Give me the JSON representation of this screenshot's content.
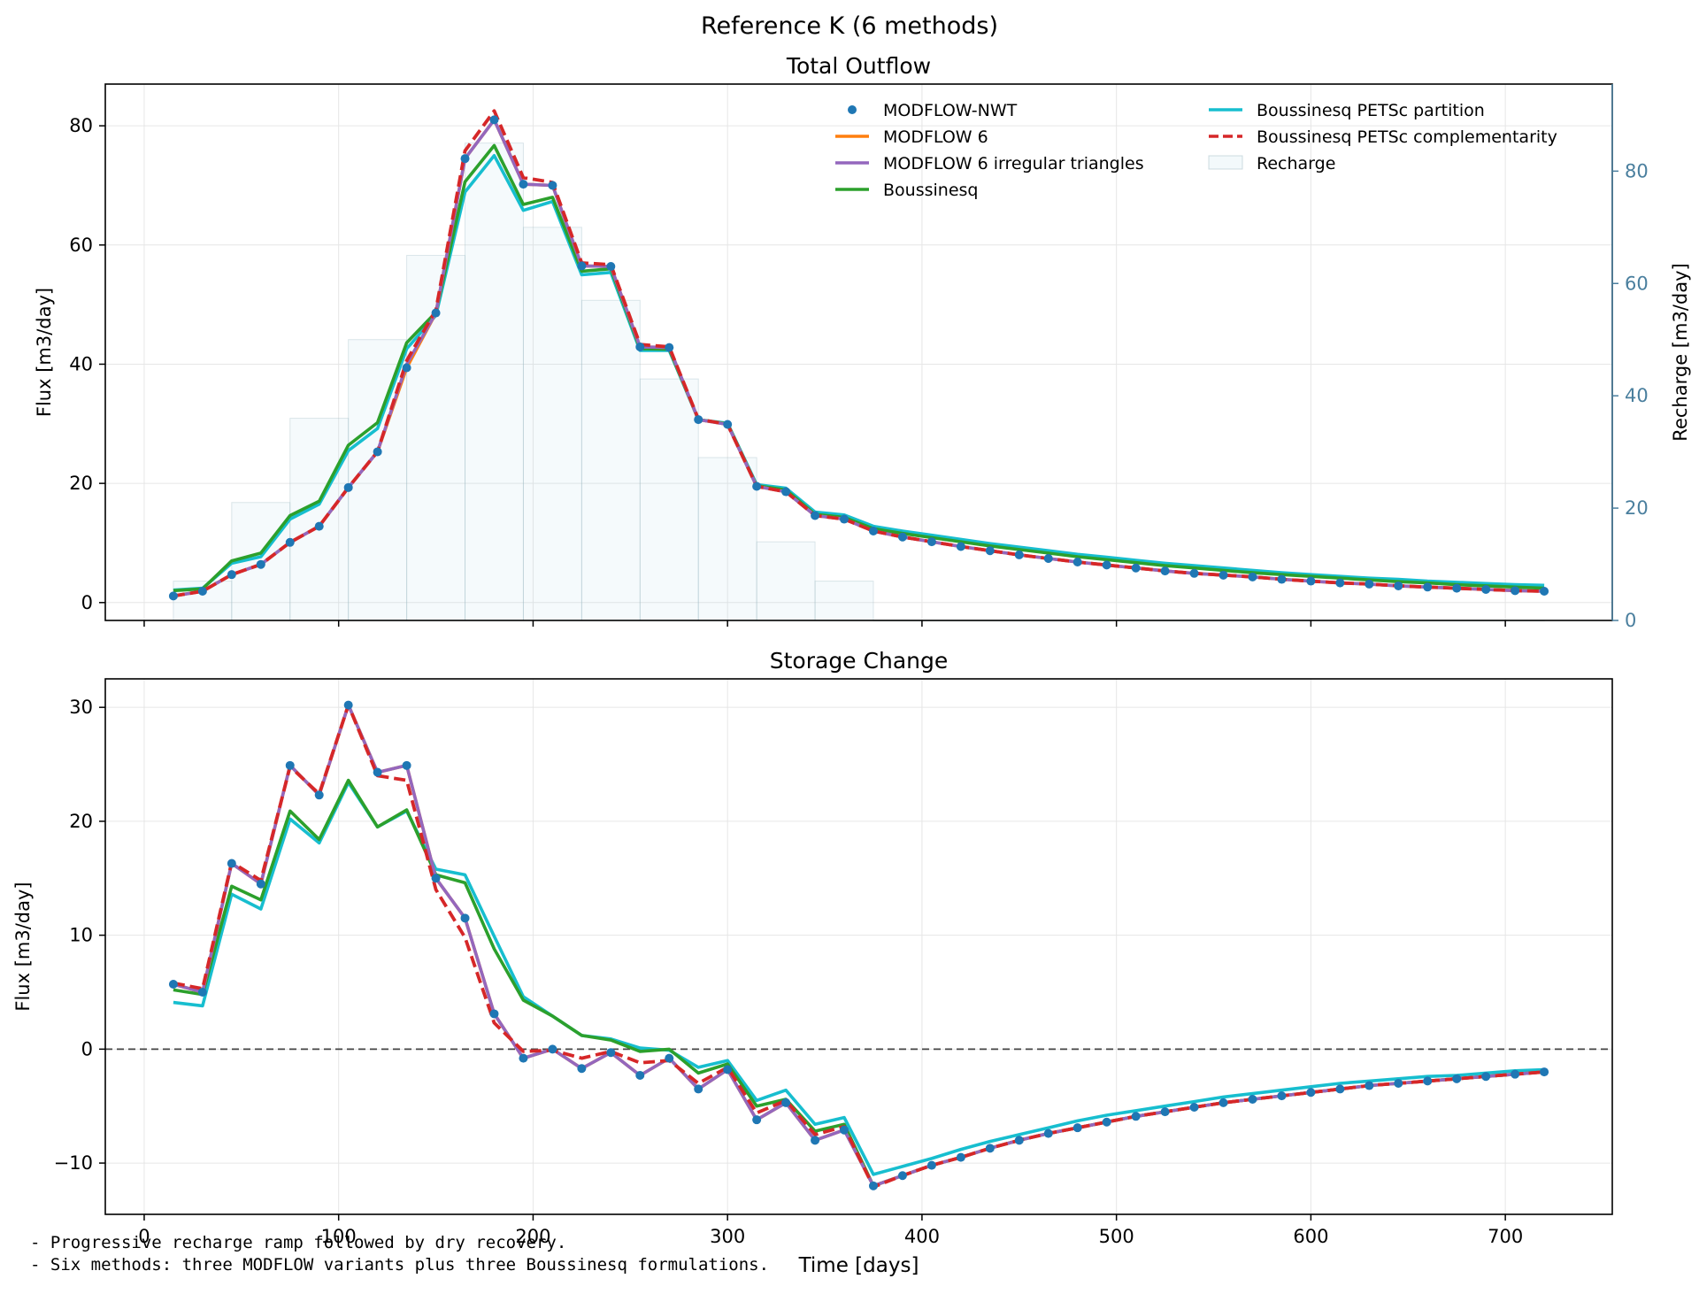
{
  "figure_title": "Reference K (6 methods)",
  "notes": [
    "- Progressive recharge ramp followed by dry recovery.",
    "- Six methods: three MODFLOW variants plus three Boussinesq formulations."
  ],
  "colors": {
    "MODFLOW-NWT": "#1f77b4",
    "MODFLOW 6": "#ff7f0e",
    "MODFLOW 6 irregular triangles": "#9467bd",
    "Boussinesq": "#2ca02c",
    "Boussinesq PETSc partition": "#17becf",
    "Boussinesq PETSc complementarity": "#d62728",
    "Recharge": "#4a7f9e"
  },
  "chart_data": [
    {
      "type": "line",
      "title": "Total Outflow",
      "xlabel": "",
      "ylabel": "Flux [m3/day]",
      "y2label": "Recharge [m3/day]",
      "xlim": [
        -20,
        755
      ],
      "ylim": [
        -3,
        87
      ],
      "y2lim": [
        0,
        95.5
      ],
      "xticks": [
        0,
        100,
        200,
        300,
        400,
        500,
        600,
        700
      ],
      "yticks": [
        0,
        20,
        40,
        60,
        80
      ],
      "y2ticks": [
        0,
        20,
        40,
        60,
        80
      ],
      "grid": true,
      "legend": "top-right",
      "legend_entries": [
        "MODFLOW-NWT",
        "MODFLOW 6",
        "MODFLOW 6 irregular triangles",
        "Boussinesq",
        "Boussinesq PETSc partition",
        "Boussinesq PETSc complementarity",
        "Recharge"
      ],
      "x": [
        15,
        30,
        45,
        60,
        75,
        90,
        105,
        120,
        135,
        150,
        165,
        180,
        195,
        210,
        225,
        240,
        255,
        270,
        285,
        300,
        315,
        330,
        345,
        360,
        375,
        390,
        405,
        420,
        435,
        450,
        465,
        480,
        495,
        510,
        525,
        540,
        555,
        570,
        585,
        600,
        615,
        630,
        645,
        660,
        675,
        690,
        705,
        720
      ],
      "series": [
        {
          "name": "MODFLOW-NWT",
          "style": "markers",
          "values": [
            1.1,
            1.9,
            4.7,
            6.4,
            10.1,
            12.8,
            19.3,
            25.3,
            39.4,
            48.6,
            74.5,
            81.0,
            70.2,
            70.0,
            56.5,
            56.4,
            42.9,
            42.8,
            30.7,
            29.9,
            19.5,
            18.6,
            14.6,
            14.0,
            12.0,
            11.0,
            10.2,
            9.4,
            8.7,
            8.0,
            7.4,
            6.8,
            6.3,
            5.8,
            5.3,
            4.9,
            4.6,
            4.3,
            3.9,
            3.6,
            3.3,
            3.1,
            2.8,
            2.6,
            2.4,
            2.2,
            2.0,
            1.9
          ]
        },
        {
          "name": "MODFLOW 6",
          "style": "solid",
          "values": [
            1.1,
            1.9,
            4.7,
            6.4,
            10.1,
            12.8,
            19.3,
            25.3,
            39.4,
            48.6,
            74.5,
            81.0,
            70.2,
            70.0,
            56.5,
            56.4,
            42.9,
            42.8,
            30.7,
            29.9,
            19.5,
            18.6,
            14.6,
            14.0,
            12.0,
            11.0,
            10.2,
            9.4,
            8.7,
            8.0,
            7.4,
            6.8,
            6.3,
            5.8,
            5.3,
            4.9,
            4.6,
            4.3,
            3.9,
            3.6,
            3.3,
            3.1,
            2.8,
            2.6,
            2.4,
            2.2,
            2.0,
            1.9
          ]
        },
        {
          "name": "MODFLOW 6 irregular triangles",
          "style": "solid",
          "values": [
            1.1,
            1.9,
            4.7,
            6.4,
            10.1,
            12.8,
            19.3,
            25.3,
            40.0,
            48.6,
            74.5,
            81.0,
            70.2,
            70.0,
            56.5,
            56.4,
            42.9,
            42.8,
            30.7,
            29.9,
            19.5,
            18.6,
            14.6,
            14.0,
            12.0,
            11.0,
            10.2,
            9.4,
            8.7,
            8.0,
            7.4,
            6.8,
            6.3,
            5.8,
            5.3,
            4.9,
            4.6,
            4.3,
            3.9,
            3.6,
            3.3,
            3.1,
            2.8,
            2.6,
            2.4,
            2.2,
            2.0,
            1.9
          ]
        },
        {
          "name": "Boussinesq",
          "style": "solid",
          "values": [
            2.0,
            2.3,
            7.0,
            8.3,
            14.6,
            17.0,
            26.4,
            30.2,
            43.6,
            48.7,
            70.6,
            76.7,
            66.8,
            68.0,
            55.6,
            56.0,
            42.6,
            42.5,
            30.7,
            30.0,
            19.6,
            18.9,
            14.8,
            14.3,
            12.4,
            11.6,
            10.9,
            10.2,
            9.5,
            8.9,
            8.3,
            7.7,
            7.2,
            6.7,
            6.2,
            5.8,
            5.4,
            5.0,
            4.7,
            4.4,
            4.1,
            3.8,
            3.5,
            3.3,
            3.0,
            2.8,
            2.6,
            2.4
          ]
        },
        {
          "name": "Boussinesq PETSc partition",
          "style": "solid",
          "values": [
            2.1,
            2.4,
            6.6,
            7.7,
            14.0,
            16.5,
            25.5,
            29.2,
            42.6,
            48.2,
            68.9,
            75.0,
            65.8,
            67.3,
            55.0,
            55.4,
            42.3,
            42.3,
            30.7,
            30.1,
            19.8,
            19.2,
            15.2,
            14.7,
            12.8,
            12.0,
            11.3,
            10.6,
            9.9,
            9.3,
            8.7,
            8.1,
            7.6,
            7.1,
            6.6,
            6.2,
            5.8,
            5.4,
            5.0,
            4.7,
            4.4,
            4.1,
            3.9,
            3.6,
            3.4,
            3.2,
            3.0,
            2.9
          ]
        },
        {
          "name": "Boussinesq PETSc complementarity",
          "style": "dashed",
          "values": [
            1.1,
            1.9,
            4.7,
            6.4,
            10.1,
            12.8,
            19.3,
            25.3,
            40.6,
            49.1,
            75.8,
            82.5,
            71.3,
            70.5,
            57.0,
            56.7,
            43.3,
            42.9,
            30.8,
            29.9,
            19.5,
            18.6,
            14.6,
            14.0,
            12.0,
            11.0,
            10.2,
            9.4,
            8.7,
            8.0,
            7.4,
            6.8,
            6.3,
            5.8,
            5.3,
            4.9,
            4.6,
            4.3,
            3.9,
            3.6,
            3.3,
            3.1,
            2.8,
            2.6,
            2.4,
            2.2,
            2.0,
            1.9
          ]
        }
      ],
      "recharge_bars": {
        "name": "Recharge",
        "axis": "y2",
        "x_start": [
          15,
          45,
          75,
          105,
          135,
          165,
          195,
          225,
          255,
          285,
          315,
          345,
          375
        ],
        "x_end": [
          45,
          75,
          105,
          135,
          165,
          195,
          225,
          255,
          285,
          315,
          345,
          375,
          720
        ],
        "values": [
          7.0,
          21.0,
          36.0,
          50.0,
          65.0,
          85.0,
          70.0,
          57.0,
          43.0,
          29.0,
          14.0,
          7.0,
          0.0
        ]
      }
    },
    {
      "type": "line",
      "title": "Storage Change",
      "xlabel": "Time [days]",
      "ylabel": "Flux [m3/day]",
      "xlim": [
        -20,
        755
      ],
      "ylim": [
        -14.5,
        32.5
      ],
      "xticks": [
        0,
        100,
        200,
        300,
        400,
        500,
        600,
        700
      ],
      "yticks": [
        -10,
        0,
        10,
        20,
        30
      ],
      "reference_line": 0,
      "grid": true,
      "x": [
        15,
        30,
        45,
        60,
        75,
        90,
        105,
        120,
        135,
        150,
        165,
        180,
        195,
        210,
        225,
        240,
        255,
        270,
        285,
        300,
        315,
        330,
        345,
        360,
        375,
        390,
        405,
        420,
        435,
        450,
        465,
        480,
        495,
        510,
        525,
        540,
        555,
        570,
        585,
        600,
        615,
        630,
        645,
        660,
        675,
        690,
        705,
        720
      ],
      "series": [
        {
          "name": "MODFLOW-NWT",
          "style": "markers",
          "values": [
            5.7,
            5.0,
            16.3,
            14.5,
            24.9,
            22.3,
            30.2,
            24.3,
            24.9,
            15.0,
            11.5,
            3.1,
            -0.8,
            0.0,
            -1.7,
            -0.3,
            -2.3,
            -0.8,
            -3.5,
            -1.8,
            -6.2,
            -4.7,
            -8.0,
            -7.1,
            -12.0,
            -11.1,
            -10.2,
            -9.5,
            -8.7,
            -8.0,
            -7.4,
            -6.9,
            -6.4,
            -5.9,
            -5.5,
            -5.1,
            -4.7,
            -4.4,
            -4.1,
            -3.8,
            -3.5,
            -3.2,
            -3.0,
            -2.8,
            -2.6,
            -2.4,
            -2.2,
            -2.0
          ]
        },
        {
          "name": "MODFLOW 6",
          "style": "solid",
          "values": [
            5.7,
            5.0,
            16.3,
            14.5,
            24.9,
            22.3,
            30.2,
            24.3,
            24.9,
            15.0,
            11.5,
            3.1,
            -0.8,
            0.0,
            -1.7,
            -0.3,
            -2.3,
            -0.8,
            -3.5,
            -1.8,
            -6.2,
            -4.7,
            -8.0,
            -7.1,
            -12.0,
            -11.1,
            -10.2,
            -9.5,
            -8.7,
            -8.0,
            -7.4,
            -6.9,
            -6.4,
            -5.9,
            -5.5,
            -5.1,
            -4.7,
            -4.4,
            -4.1,
            -3.8,
            -3.5,
            -3.2,
            -3.0,
            -2.8,
            -2.6,
            -2.4,
            -2.2,
            -2.0
          ]
        },
        {
          "name": "MODFLOW 6 irregular triangles",
          "style": "solid",
          "values": [
            5.7,
            5.0,
            16.3,
            14.5,
            24.9,
            22.3,
            30.2,
            24.3,
            24.9,
            15.0,
            11.5,
            3.1,
            -0.8,
            0.0,
            -1.7,
            -0.3,
            -2.3,
            -0.8,
            -3.5,
            -1.8,
            -6.2,
            -4.7,
            -8.0,
            -7.1,
            -12.0,
            -11.1,
            -10.2,
            -9.5,
            -8.7,
            -8.0,
            -7.4,
            -6.9,
            -6.4,
            -5.9,
            -5.5,
            -5.1,
            -4.7,
            -4.4,
            -4.1,
            -3.8,
            -3.5,
            -3.2,
            -3.0,
            -2.8,
            -2.6,
            -2.4,
            -2.2,
            -2.0
          ]
        },
        {
          "name": "Boussinesq",
          "style": "solid",
          "values": [
            5.2,
            4.8,
            14.3,
            13.1,
            20.9,
            18.4,
            23.6,
            19.5,
            21.0,
            15.3,
            14.6,
            8.8,
            4.3,
            2.9,
            1.2,
            0.8,
            -0.2,
            0.0,
            -2.1,
            -1.3,
            -5.0,
            -4.4,
            -7.2,
            -6.6,
            -12.0,
            -11.1,
            -10.2,
            -9.5,
            -8.7,
            -8.0,
            -7.4,
            -6.9,
            -6.4,
            -5.9,
            -5.5,
            -5.1,
            -4.7,
            -4.4,
            -4.1,
            -3.8,
            -3.5,
            -3.2,
            -3.0,
            -2.8,
            -2.6,
            -2.4,
            -2.2,
            -2.0
          ]
        },
        {
          "name": "Boussinesq PETSc partition",
          "style": "solid",
          "values": [
            4.1,
            3.8,
            13.6,
            12.3,
            20.2,
            18.1,
            23.4,
            19.5,
            20.9,
            15.8,
            15.3,
            9.9,
            4.6,
            2.9,
            1.2,
            0.9,
            0.1,
            -0.1,
            -1.6,
            -1.0,
            -4.5,
            -3.6,
            -6.6,
            -6.0,
            -11.0,
            -10.3,
            -9.6,
            -8.8,
            -8.1,
            -7.5,
            -6.9,
            -6.3,
            -5.8,
            -5.4,
            -5.0,
            -4.6,
            -4.2,
            -3.9,
            -3.6,
            -3.3,
            -3.0,
            -2.8,
            -2.6,
            -2.4,
            -2.3,
            -2.1,
            -1.9,
            -1.8
          ]
        },
        {
          "name": "Boussinesq PETSc complementarity",
          "style": "dashed",
          "values": [
            5.8,
            5.3,
            16.4,
            14.8,
            24.8,
            22.4,
            30.2,
            24.0,
            23.6,
            14.0,
            9.8,
            2.3,
            -0.2,
            -0.1,
            -0.8,
            -0.2,
            -1.2,
            -1.0,
            -3.0,
            -1.6,
            -5.6,
            -4.5,
            -7.5,
            -6.8,
            -12.1,
            -11.1,
            -10.2,
            -9.5,
            -8.7,
            -8.0,
            -7.4,
            -6.9,
            -6.4,
            -5.9,
            -5.5,
            -5.1,
            -4.7,
            -4.4,
            -4.1,
            -3.8,
            -3.5,
            -3.2,
            -3.0,
            -2.8,
            -2.6,
            -2.4,
            -2.2,
            -2.0
          ]
        }
      ]
    }
  ]
}
